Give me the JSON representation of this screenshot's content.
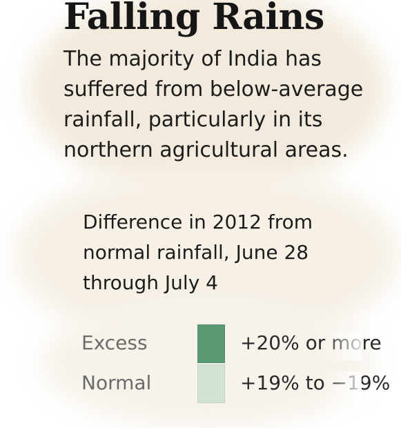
{
  "title": "Falling Rains",
  "intro_lines": [
    "The majority of India has",
    "suffered from below-average",
    "rainfall, particularly in its",
    "northern agricultural areas."
  ],
  "subtitle_lines": [
    "Difference in 2012 from",
    "normal rainfall, June 28",
    "through July 4"
  ],
  "legend": [
    {
      "label": "Excess",
      "range": "+20% or more",
      "color": "#5a9a72"
    },
    {
      "label": "Normal",
      "range": "+19% to −19%",
      "color": "#d3e3d6"
    }
  ]
}
